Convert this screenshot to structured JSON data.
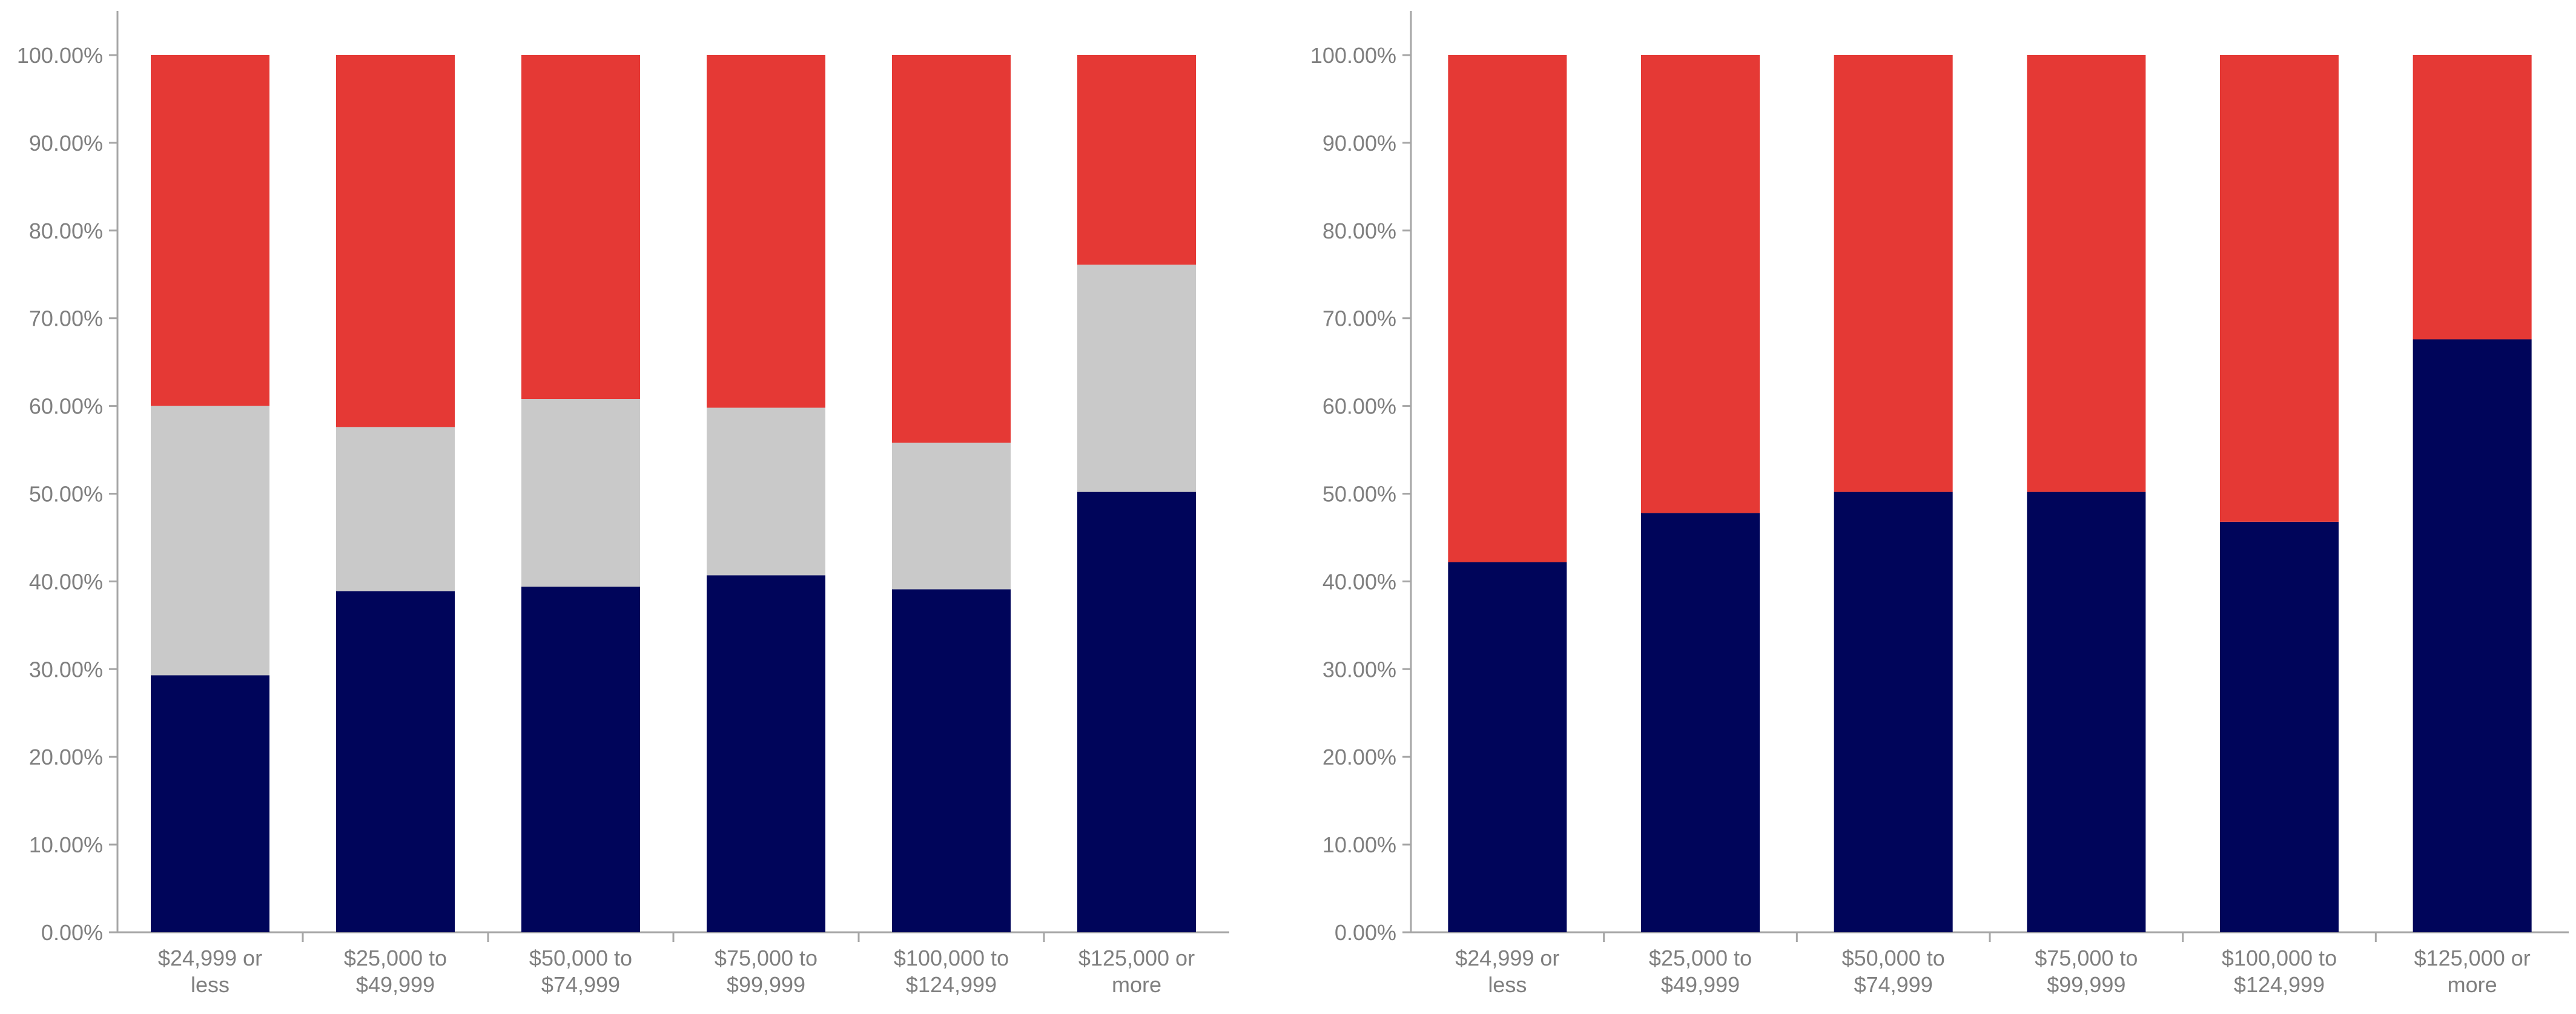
{
  "colors": {
    "bottom": "#00055a",
    "middle": "#c9c9c9",
    "top": "#e53935",
    "axis": "#a6a6a6",
    "text": "#7f7f7f"
  },
  "chart_data": [
    {
      "type": "bar",
      "stacked": true,
      "percent": true,
      "categories": [
        [
          "$24,999 or",
          "less"
        ],
        [
          "$25,000 to",
          "$49,999"
        ],
        [
          "$50,000 to",
          "$74,999"
        ],
        [
          "$75,000 to",
          "$99,999"
        ],
        [
          "$100,000 to",
          "$124,999"
        ],
        [
          "$125,000 or",
          "more"
        ]
      ],
      "series": [
        {
          "name": "bottom",
          "color_key": "bottom",
          "values": [
            29.3,
            38.9,
            39.4,
            40.7,
            39.1,
            50.2
          ]
        },
        {
          "name": "middle",
          "color_key": "middle",
          "values": [
            30.7,
            18.7,
            21.4,
            19.1,
            16.7,
            25.9
          ]
        },
        {
          "name": "top",
          "color_key": "top",
          "values": [
            40.0,
            42.4,
            39.2,
            40.2,
            44.2,
            23.9
          ]
        }
      ],
      "ylim": [
        0,
        100
      ],
      "yticks": [
        "0.00%",
        "10.00%",
        "20.00%",
        "30.00%",
        "40.00%",
        "50.00%",
        "60.00%",
        "70.00%",
        "80.00%",
        "90.00%",
        "100.00%"
      ],
      "title": "",
      "xlabel": "",
      "ylabel": ""
    },
    {
      "type": "bar",
      "stacked": true,
      "percent": true,
      "categories": [
        [
          "$24,999 or",
          "less"
        ],
        [
          "$25,000 to",
          "$49,999"
        ],
        [
          "$50,000 to",
          "$74,999"
        ],
        [
          "$75,000 to",
          "$99,999"
        ],
        [
          "$100,000 to",
          "$124,999"
        ],
        [
          "$125,000 or",
          "more"
        ]
      ],
      "series": [
        {
          "name": "bottom",
          "color_key": "bottom",
          "values": [
            42.2,
            47.8,
            50.2,
            50.2,
            46.8,
            67.6
          ]
        },
        {
          "name": "top",
          "color_key": "top",
          "values": [
            57.8,
            52.2,
            49.8,
            49.8,
            53.2,
            32.4
          ]
        }
      ],
      "ylim": [
        0,
        100
      ],
      "yticks": [
        "0.00%",
        "10.00%",
        "20.00%",
        "30.00%",
        "40.00%",
        "50.00%",
        "60.00%",
        "70.00%",
        "80.00%",
        "90.00%",
        "100.00%"
      ],
      "title": "",
      "xlabel": "",
      "ylabel": ""
    }
  ]
}
